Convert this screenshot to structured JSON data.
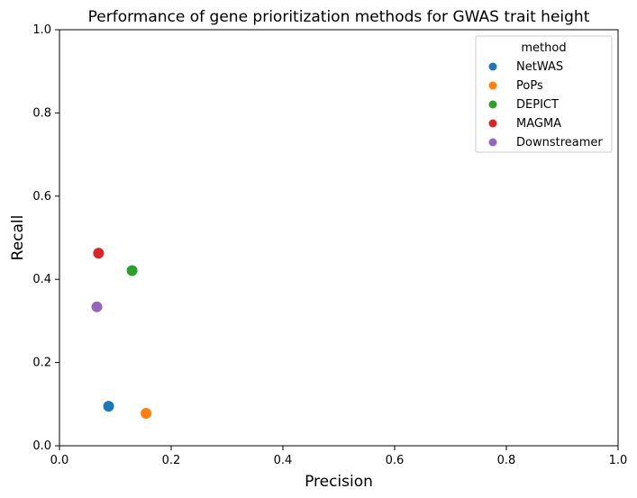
{
  "chart_data": {
    "type": "scatter",
    "title": "Performance of gene prioritization methods for GWAS trait height",
    "xlabel": "Precision",
    "ylabel": "Recall",
    "xlim": [
      0.0,
      1.0
    ],
    "ylim": [
      0.0,
      1.0
    ],
    "xticks": [
      "0.0",
      "0.2",
      "0.4",
      "0.6",
      "0.8",
      "1.0"
    ],
    "yticks": [
      "0.0",
      "0.2",
      "0.4",
      "0.6",
      "0.8",
      "1.0"
    ],
    "grid": false,
    "legend": {
      "title": "method",
      "position": "top-right"
    },
    "series": [
      {
        "name": "NetWAS",
        "color": "#1f77b4",
        "x": 0.088,
        "y": 0.095
      },
      {
        "name": "PoPs",
        "color": "#ff7f0e",
        "x": 0.155,
        "y": 0.078
      },
      {
        "name": "DEPICT",
        "color": "#2ca02c",
        "x": 0.13,
        "y": 0.421
      },
      {
        "name": "MAGMA",
        "color": "#d62728",
        "x": 0.07,
        "y": 0.463
      },
      {
        "name": "Downstreamer",
        "color": "#9467bd",
        "x": 0.067,
        "y": 0.334
      }
    ]
  }
}
